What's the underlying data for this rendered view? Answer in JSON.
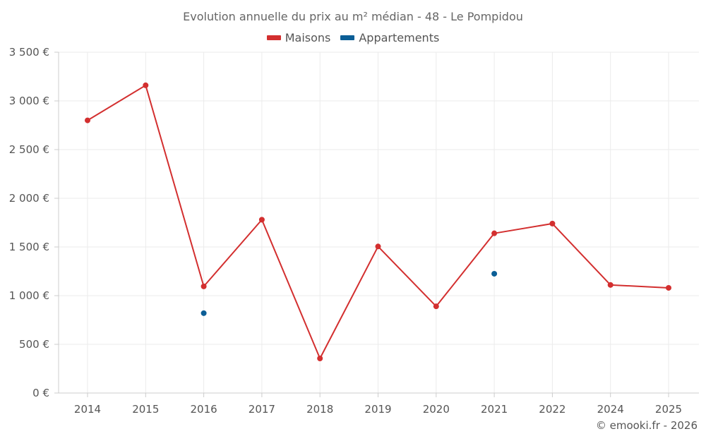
{
  "chart_data": {
    "type": "line",
    "title": "Evolution annuelle du prix au m² médian - 48 - Le Pompidou",
    "categories": [
      "2014",
      "2015",
      "2016",
      "2017",
      "2018",
      "2019",
      "2020",
      "2021",
      "2022",
      "2024",
      "2025"
    ],
    "yticks": [
      "0 €",
      "500 €",
      "1 000 €",
      "1 500 €",
      "2 000 €",
      "2 500 €",
      "3 000 €",
      "3 500 €"
    ],
    "ylim": [
      0,
      3500
    ],
    "xlabel": "",
    "ylabel": "",
    "grid": true,
    "legend_position": "top-center",
    "series": [
      {
        "name": "Maisons",
        "color": "#d32f2f",
        "values": [
          2800,
          3160,
          1095,
          1780,
          355,
          1505,
          890,
          1640,
          1740,
          1110,
          1080
        ]
      },
      {
        "name": "Appartements",
        "color": "#0b5e96",
        "values": [
          null,
          null,
          820,
          null,
          null,
          null,
          null,
          1225,
          null,
          null,
          null
        ]
      }
    ]
  },
  "footer": {
    "credit": "© emooki.fr - 2026"
  }
}
